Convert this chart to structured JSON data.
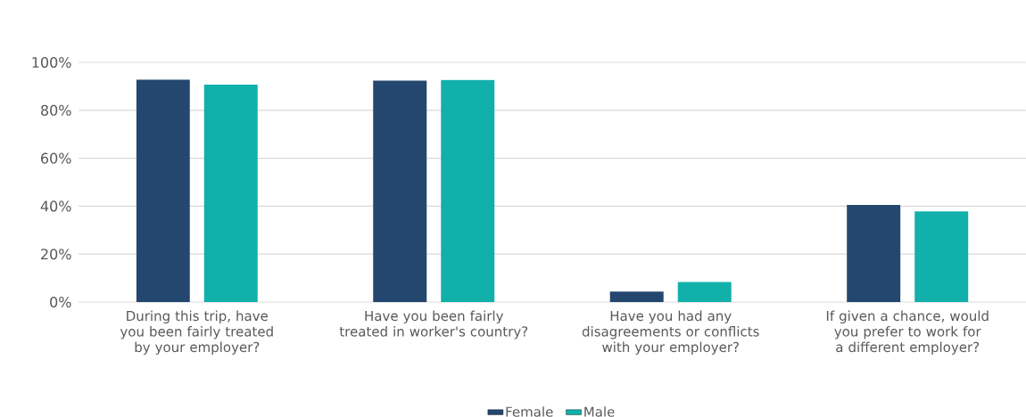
{
  "chart_data": {
    "type": "bar",
    "categories": [
      "During this trip, have you been fairly treated by your employer?",
      "Have you been fairly treated in worker's country?",
      "Have you had any disagreements or conflicts with your employer?",
      "If given a chance, would you prefer to work for a different employer?"
    ],
    "series": [
      {
        "name": "Female",
        "color": "#24476f",
        "values": [
          92.8,
          92.4,
          4.4,
          40.5
        ]
      },
      {
        "name": "Male",
        "color": "#12b0ab",
        "values": [
          90.7,
          92.7,
          8.4,
          37.8
        ]
      }
    ],
    "ylim": [
      0,
      100
    ],
    "yticks": [
      {
        "value": 0,
        "label": "0%"
      },
      {
        "value": 20,
        "label": "20%"
      },
      {
        "value": 40,
        "label": "40%"
      },
      {
        "value": 60,
        "label": "60%"
      },
      {
        "value": 80,
        "label": "80%"
      },
      {
        "value": 100,
        "label": "100%"
      }
    ],
    "grid": "y",
    "legend": "bottom"
  }
}
